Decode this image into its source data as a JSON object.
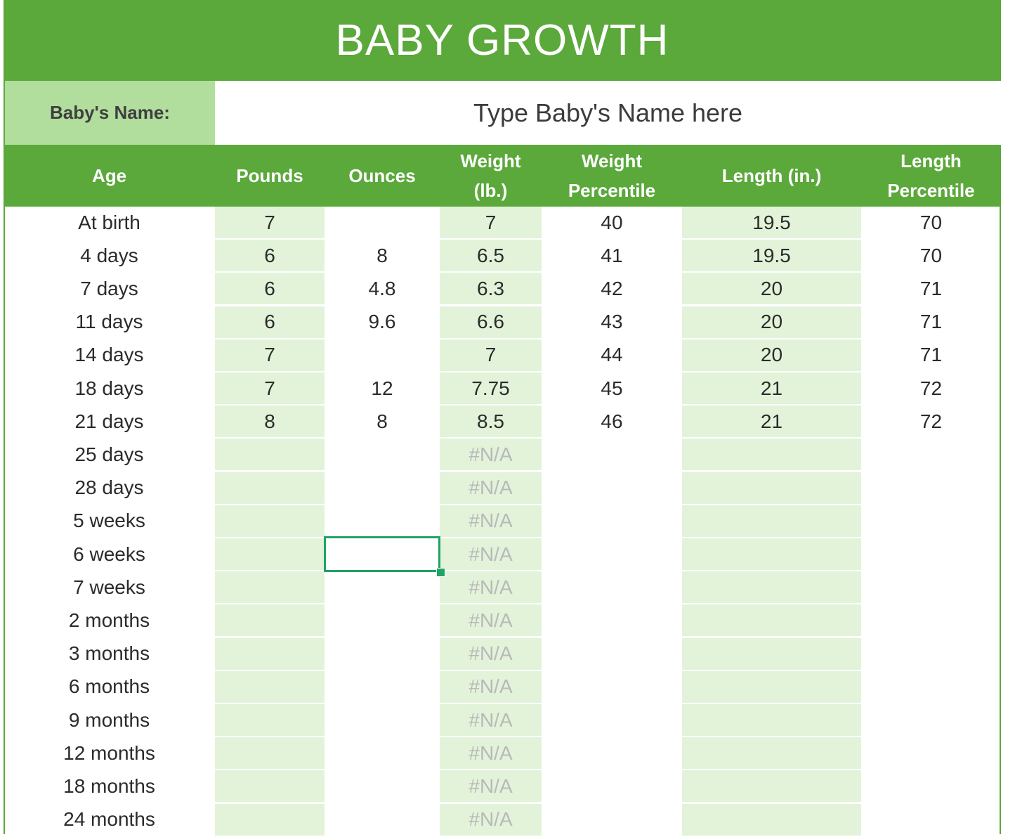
{
  "title": "BABY GROWTH",
  "name_label": "Baby's Name:",
  "name_value": "Type Baby's Name here",
  "headers": {
    "age": "Age",
    "pounds": "Pounds",
    "ounces": "Ounces",
    "weight_line1": "Weight",
    "weight_line2": "(lb.)",
    "weight_pct_line1": "Weight",
    "weight_pct_line2": "Percentile",
    "length": "Length (in.)",
    "length_pct_line1": "Length",
    "length_pct_line2": "Percentile"
  },
  "rows": [
    {
      "age": "At birth",
      "pounds": "7",
      "ounces": "",
      "weight": "7",
      "weight_pct": "40",
      "length": "19.5",
      "length_pct": "70"
    },
    {
      "age": "4 days",
      "pounds": "6",
      "ounces": "8",
      "weight": "6.5",
      "weight_pct": "41",
      "length": "19.5",
      "length_pct": "70"
    },
    {
      "age": "7 days",
      "pounds": "6",
      "ounces": "4.8",
      "weight": "6.3",
      "weight_pct": "42",
      "length": "20",
      "length_pct": "71"
    },
    {
      "age": "11 days",
      "pounds": "6",
      "ounces": "9.6",
      "weight": "6.6",
      "weight_pct": "43",
      "length": "20",
      "length_pct": "71"
    },
    {
      "age": "14 days",
      "pounds": "7",
      "ounces": "",
      "weight": "7",
      "weight_pct": "44",
      "length": "20",
      "length_pct": "71"
    },
    {
      "age": "18 days",
      "pounds": "7",
      "ounces": "12",
      "weight": "7.75",
      "weight_pct": "45",
      "length": "21",
      "length_pct": "72"
    },
    {
      "age": "21 days",
      "pounds": "8",
      "ounces": "8",
      "weight": "8.5",
      "weight_pct": "46",
      "length": "21",
      "length_pct": "72"
    },
    {
      "age": "25 days",
      "pounds": "",
      "ounces": "",
      "weight": "#N/A",
      "weight_pct": "",
      "length": "",
      "length_pct": ""
    },
    {
      "age": "28 days",
      "pounds": "",
      "ounces": "",
      "weight": "#N/A",
      "weight_pct": "",
      "length": "",
      "length_pct": ""
    },
    {
      "age": "5 weeks",
      "pounds": "",
      "ounces": "",
      "weight": "#N/A",
      "weight_pct": "",
      "length": "",
      "length_pct": ""
    },
    {
      "age": "6 weeks",
      "pounds": "",
      "ounces": "",
      "weight": "#N/A",
      "weight_pct": "",
      "length": "",
      "length_pct": ""
    },
    {
      "age": "7 weeks",
      "pounds": "",
      "ounces": "",
      "weight": "#N/A",
      "weight_pct": "",
      "length": "",
      "length_pct": ""
    },
    {
      "age": "2 months",
      "pounds": "",
      "ounces": "",
      "weight": "#N/A",
      "weight_pct": "",
      "length": "",
      "length_pct": ""
    },
    {
      "age": "3 months",
      "pounds": "",
      "ounces": "",
      "weight": "#N/A",
      "weight_pct": "",
      "length": "",
      "length_pct": ""
    },
    {
      "age": "6 months",
      "pounds": "",
      "ounces": "",
      "weight": "#N/A",
      "weight_pct": "",
      "length": "",
      "length_pct": ""
    },
    {
      "age": "9 months",
      "pounds": "",
      "ounces": "",
      "weight": "#N/A",
      "weight_pct": "",
      "length": "",
      "length_pct": ""
    },
    {
      "age": "12 months",
      "pounds": "",
      "ounces": "",
      "weight": "#N/A",
      "weight_pct": "",
      "length": "",
      "length_pct": ""
    },
    {
      "age": "18 months",
      "pounds": "",
      "ounces": "",
      "weight": "#N/A",
      "weight_pct": "",
      "length": "",
      "length_pct": ""
    },
    {
      "age": "24 months",
      "pounds": "",
      "ounces": "",
      "weight": "#N/A",
      "weight_pct": "",
      "length": "",
      "length_pct": ""
    }
  ],
  "colors": {
    "header_green": "#5ba83b",
    "label_green": "#b1dd9d",
    "shade_green": "#e2f3da",
    "selection_green": "#21a366",
    "na_gray": "#b9b9b9"
  }
}
